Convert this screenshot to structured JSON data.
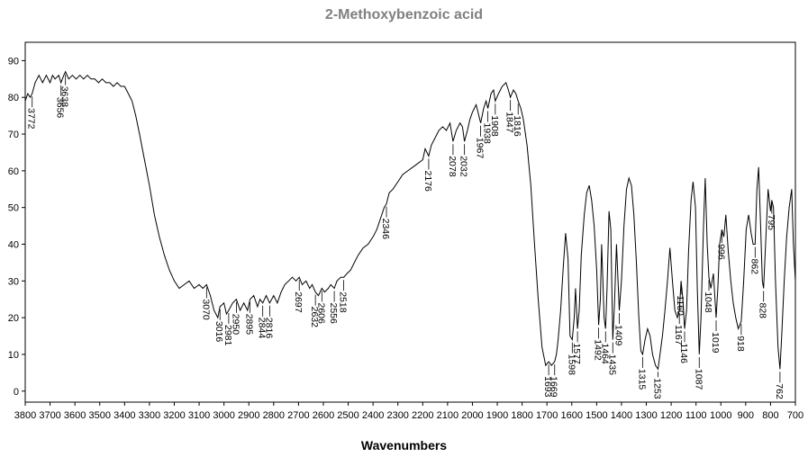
{
  "chart_data": {
    "type": "line",
    "title": "2-Methoxybenzoic acid",
    "xlabel": "Wavenumbers",
    "ylabel": "",
    "xlim": [
      3800,
      700
    ],
    "ylim": [
      -3,
      95
    ],
    "grid": false,
    "x_ticks": [
      "3800",
      "3700",
      "3600",
      "3500",
      "3400",
      "3300",
      "3200",
      "3100",
      "3000",
      "2900",
      "2800",
      "2700",
      "2600",
      "2500",
      "2400",
      "2300",
      "2200",
      "2100",
      "2000",
      "1900",
      "1800",
      "1700",
      "1600",
      "1500",
      "1400",
      "1300",
      "1200",
      "1100",
      "1000",
      "900",
      "800",
      "700"
    ],
    "y_ticks": [
      0,
      10,
      20,
      30,
      40,
      50,
      60,
      70,
      80,
      90
    ],
    "series": [
      {
        "color": "#000000",
        "points": [
          [
            3800,
            79
          ],
          [
            3790,
            81
          ],
          [
            3780,
            80
          ],
          [
            3772,
            81
          ],
          [
            3760,
            84
          ],
          [
            3745,
            86
          ],
          [
            3730,
            84
          ],
          [
            3715,
            86
          ],
          [
            3700,
            84
          ],
          [
            3690,
            86
          ],
          [
            3680,
            85
          ],
          [
            3665,
            86
          ],
          [
            3656,
            84
          ],
          [
            3645,
            86
          ],
          [
            3638,
            87
          ],
          [
            3625,
            85
          ],
          [
            3610,
            86
          ],
          [
            3595,
            85
          ],
          [
            3580,
            86
          ],
          [
            3565,
            85
          ],
          [
            3550,
            86
          ],
          [
            3535,
            85
          ],
          [
            3520,
            85
          ],
          [
            3505,
            84
          ],
          [
            3490,
            85
          ],
          [
            3475,
            84
          ],
          [
            3460,
            84
          ],
          [
            3445,
            83
          ],
          [
            3430,
            84
          ],
          [
            3415,
            83
          ],
          [
            3400,
            83
          ],
          [
            3385,
            81
          ],
          [
            3370,
            79
          ],
          [
            3355,
            75
          ],
          [
            3340,
            70
          ],
          [
            3320,
            63
          ],
          [
            3300,
            56
          ],
          [
            3280,
            48
          ],
          [
            3260,
            42
          ],
          [
            3240,
            37
          ],
          [
            3220,
            33
          ],
          [
            3200,
            30
          ],
          [
            3180,
            28
          ],
          [
            3160,
            29
          ],
          [
            3140,
            30
          ],
          [
            3120,
            28
          ],
          [
            3100,
            29
          ],
          [
            3085,
            28
          ],
          [
            3070,
            29
          ],
          [
            3055,
            26
          ],
          [
            3040,
            22
          ],
          [
            3025,
            20
          ],
          [
            3016,
            23
          ],
          [
            3000,
            24
          ],
          [
            2990,
            21
          ],
          [
            2981,
            22
          ],
          [
            2965,
            24
          ],
          [
            2950,
            25
          ],
          [
            2935,
            22
          ],
          [
            2920,
            24
          ],
          [
            2905,
            22
          ],
          [
            2895,
            25
          ],
          [
            2880,
            26
          ],
          [
            2865,
            23
          ],
          [
            2855,
            25
          ],
          [
            2844,
            24
          ],
          [
            2830,
            26
          ],
          [
            2816,
            24
          ],
          [
            2800,
            26
          ],
          [
            2785,
            24
          ],
          [
            2770,
            27
          ],
          [
            2755,
            29
          ],
          [
            2740,
            30
          ],
          [
            2725,
            31
          ],
          [
            2710,
            30
          ],
          [
            2697,
            31
          ],
          [
            2685,
            29
          ],
          [
            2670,
            30
          ],
          [
            2655,
            28
          ],
          [
            2645,
            29
          ],
          [
            2632,
            27
          ],
          [
            2620,
            26
          ],
          [
            2606,
            28
          ],
          [
            2595,
            27
          ],
          [
            2580,
            28
          ],
          [
            2570,
            29
          ],
          [
            2556,
            28
          ],
          [
            2545,
            30
          ],
          [
            2530,
            31
          ],
          [
            2518,
            31
          ],
          [
            2505,
            32
          ],
          [
            2490,
            33
          ],
          [
            2475,
            35
          ],
          [
            2460,
            37
          ],
          [
            2440,
            39
          ],
          [
            2420,
            40
          ],
          [
            2400,
            42
          ],
          [
            2385,
            44
          ],
          [
            2370,
            47
          ],
          [
            2355,
            50
          ],
          [
            2346,
            51
          ],
          [
            2335,
            54
          ],
          [
            2320,
            55
          ],
          [
            2300,
            57
          ],
          [
            2280,
            59
          ],
          [
            2260,
            60
          ],
          [
            2240,
            61
          ],
          [
            2220,
            62
          ],
          [
            2200,
            63
          ],
          [
            2190,
            66
          ],
          [
            2176,
            64
          ],
          [
            2165,
            67
          ],
          [
            2150,
            69
          ],
          [
            2135,
            71
          ],
          [
            2120,
            72
          ],
          [
            2105,
            71
          ],
          [
            2090,
            73
          ],
          [
            2078,
            68
          ],
          [
            2065,
            71
          ],
          [
            2050,
            73
          ],
          [
            2040,
            72
          ],
          [
            2032,
            68
          ],
          [
            2020,
            71
          ],
          [
            2010,
            74
          ],
          [
            2000,
            76
          ],
          [
            1985,
            78
          ],
          [
            1967,
            73
          ],
          [
            1955,
            77
          ],
          [
            1945,
            79
          ],
          [
            1938,
            77
          ],
          [
            1925,
            81
          ],
          [
            1915,
            82
          ],
          [
            1908,
            79
          ],
          [
            1895,
            81
          ],
          [
            1880,
            83
          ],
          [
            1865,
            84
          ],
          [
            1855,
            82
          ],
          [
            1847,
            80
          ],
          [
            1835,
            82
          ],
          [
            1825,
            81
          ],
          [
            1816,
            79
          ],
          [
            1805,
            77
          ],
          [
            1795,
            74
          ],
          [
            1780,
            67
          ],
          [
            1765,
            56
          ],
          [
            1750,
            40
          ],
          [
            1735,
            25
          ],
          [
            1720,
            12
          ],
          [
            1705,
            7
          ],
          [
            1693,
            8
          ],
          [
            1682,
            7
          ],
          [
            1669,
            8
          ],
          [
            1662,
            10
          ],
          [
            1655,
            14
          ],
          [
            1645,
            22
          ],
          [
            1635,
            33
          ],
          [
            1625,
            43
          ],
          [
            1615,
            36
          ],
          [
            1607,
            15
          ],
          [
            1598,
            14
          ],
          [
            1590,
            20
          ],
          [
            1585,
            28
          ],
          [
            1577,
            17
          ],
          [
            1570,
            22
          ],
          [
            1562,
            37
          ],
          [
            1550,
            48
          ],
          [
            1540,
            54
          ],
          [
            1530,
            56
          ],
          [
            1520,
            52
          ],
          [
            1510,
            45
          ],
          [
            1500,
            33
          ],
          [
            1492,
            18
          ],
          [
            1485,
            25
          ],
          [
            1480,
            40
          ],
          [
            1475,
            30
          ],
          [
            1470,
            20
          ],
          [
            1464,
            17
          ],
          [
            1458,
            28
          ],
          [
            1450,
            49
          ],
          [
            1443,
            44
          ],
          [
            1435,
            14
          ],
          [
            1428,
            24
          ],
          [
            1420,
            40
          ],
          [
            1409,
            22
          ],
          [
            1400,
            30
          ],
          [
            1390,
            45
          ],
          [
            1380,
            55
          ],
          [
            1370,
            58
          ],
          [
            1360,
            56
          ],
          [
            1350,
            48
          ],
          [
            1340,
            35
          ],
          [
            1330,
            20
          ],
          [
            1322,
            11
          ],
          [
            1315,
            10
          ],
          [
            1305,
            14
          ],
          [
            1295,
            17
          ],
          [
            1285,
            15
          ],
          [
            1275,
            10
          ],
          [
            1263,
            7
          ],
          [
            1253,
            6
          ],
          [
            1245,
            10
          ],
          [
            1235,
            15
          ],
          [
            1225,
            22
          ],
          [
            1215,
            30
          ],
          [
            1205,
            39
          ],
          [
            1195,
            30
          ],
          [
            1185,
            22
          ],
          [
            1175,
            20
          ],
          [
            1167,
            22
          ],
          [
            1160,
            30
          ],
          [
            1153,
            25
          ],
          [
            1146,
            17
          ],
          [
            1138,
            22
          ],
          [
            1130,
            38
          ],
          [
            1120,
            52
          ],
          [
            1112,
            57
          ],
          [
            1102,
            50
          ],
          [
            1095,
            28
          ],
          [
            1087,
            10
          ],
          [
            1080,
            20
          ],
          [
            1070,
            45
          ],
          [
            1063,
            58
          ],
          [
            1055,
            40
          ],
          [
            1048,
            31
          ],
          [
            1040,
            28
          ],
          [
            1030,
            32
          ],
          [
            1019,
            20
          ],
          [
            1012,
            28
          ],
          [
            1005,
            40
          ],
          [
            996,
            44
          ],
          [
            988,
            42
          ],
          [
            980,
            48
          ],
          [
            970,
            38
          ],
          [
            960,
            30
          ],
          [
            950,
            24
          ],
          [
            940,
            20
          ],
          [
            930,
            17
          ],
          [
            918,
            19
          ],
          [
            908,
            30
          ],
          [
            898,
            44
          ],
          [
            888,
            48
          ],
          [
            878,
            43
          ],
          [
            870,
            40
          ],
          [
            862,
            40
          ],
          [
            855,
            55
          ],
          [
            848,
            61
          ],
          [
            840,
            45
          ],
          [
            833,
            30
          ],
          [
            828,
            28
          ],
          [
            820,
            40
          ],
          [
            810,
            55
          ],
          [
            800,
            49
          ],
          [
            795,
            52
          ],
          [
            788,
            50
          ],
          [
            780,
            30
          ],
          [
            770,
            12
          ],
          [
            762,
            6
          ],
          [
            755,
            15
          ],
          [
            745,
            30
          ],
          [
            735,
            42
          ],
          [
            725,
            50
          ],
          [
            715,
            55
          ],
          [
            708,
            40
          ],
          [
            700,
            30
          ]
        ]
      }
    ],
    "peak_labels": [
      "3772",
      "3656",
      "3638",
      "3070",
      "3016",
      "2981",
      "2950",
      "2895",
      "2844",
      "2816",
      "2697",
      "2632",
      "2606",
      "2556",
      "2518",
      "2346",
      "2176",
      "2078",
      "2032",
      "1967",
      "1938",
      "1908",
      "1847",
      "1816",
      "1693",
      "1669",
      "1598",
      "1577",
      "1492",
      "1464",
      "1435",
      "1409",
      "1315",
      "1253",
      "1160",
      "1167",
      "1146",
      "1087",
      "1048",
      "1019",
      "996",
      "918",
      "862",
      "828",
      "795",
      "762"
    ]
  }
}
